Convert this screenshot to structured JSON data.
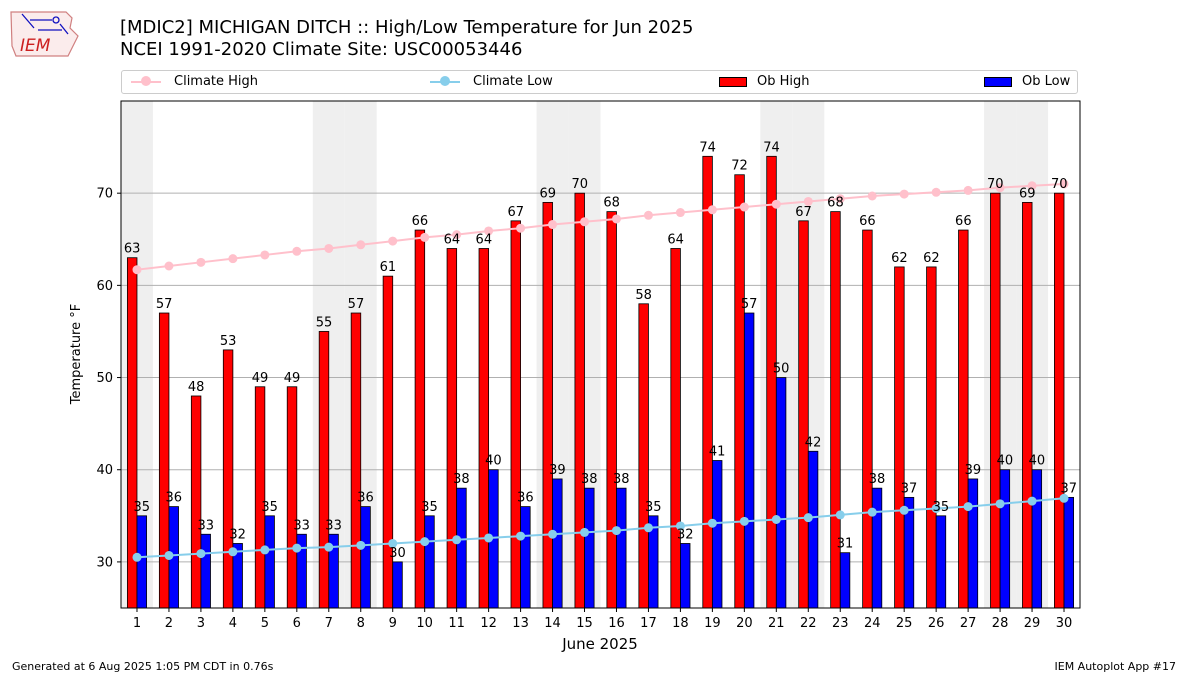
{
  "logo_text": "IEM",
  "title_line1": "[MDIC2] MICHIGAN DITCH :: High/Low Temperature for Jun 2025",
  "title_line2": "NCEI 1991-2020 Climate Site: USC00053446",
  "footer_left": "Generated at 6 Aug 2025 1:05 PM CDT in 0.76s",
  "footer_right": "IEM Autoplot App #17",
  "legend": [
    {
      "label": "Climate High",
      "color": "#ffc0cb",
      "kind": "line"
    },
    {
      "label": "Climate Low",
      "color": "#87ceeb",
      "kind": "line"
    },
    {
      "label": "Ob High",
      "color": "#ff0000",
      "kind": "box"
    },
    {
      "label": "Ob Low",
      "color": "#0000ff",
      "kind": "box"
    }
  ],
  "chart_data": {
    "type": "bar",
    "xlabel": "June 2025",
    "ylabel": "Temperature °F",
    "ylim": [
      25,
      80
    ],
    "xlim": [
      0.5,
      30.5
    ],
    "yticks": [
      30,
      40,
      50,
      60,
      70
    ],
    "grid": "horizontal",
    "legend_position": "top",
    "categories": [
      1,
      2,
      3,
      4,
      5,
      6,
      7,
      8,
      9,
      10,
      11,
      12,
      13,
      14,
      15,
      16,
      17,
      18,
      19,
      20,
      21,
      22,
      23,
      24,
      25,
      26,
      27,
      28,
      29,
      30
    ],
    "weekend_shading_days": [
      1,
      7,
      8,
      14,
      15,
      21,
      22,
      28,
      29
    ],
    "series": [
      {
        "name": "Ob High",
        "color": "#ff0000",
        "values": [
          63,
          57,
          48,
          53,
          49,
          49,
          55,
          57,
          61,
          66,
          64,
          64,
          67,
          69,
          70,
          68,
          58,
          64,
          74,
          72,
          74,
          67,
          68,
          66,
          62,
          62,
          66,
          70,
          69,
          70
        ]
      },
      {
        "name": "Ob Low",
        "color": "#0000ff",
        "values": [
          35,
          36,
          33,
          32,
          35,
          33,
          33,
          36,
          30,
          35,
          38,
          40,
          36,
          39,
          38,
          38,
          35,
          32,
          41,
          57,
          50,
          42,
          31,
          38,
          37,
          35,
          39,
          40,
          40,
          37
        ]
      },
      {
        "name": "Climate High",
        "color": "#ffc0cb",
        "values": [
          61.7,
          62.1,
          62.5,
          62.9,
          63.3,
          63.7,
          64.0,
          64.4,
          64.8,
          65.2,
          65.5,
          65.9,
          66.2,
          66.6,
          66.9,
          67.2,
          67.6,
          67.9,
          68.2,
          68.5,
          68.8,
          69.1,
          69.4,
          69.7,
          69.9,
          70.1,
          70.3,
          70.6,
          70.8,
          71.0
        ]
      },
      {
        "name": "Climate Low",
        "color": "#87ceeb",
        "values": [
          30.5,
          30.7,
          30.9,
          31.1,
          31.3,
          31.5,
          31.6,
          31.8,
          32.0,
          32.2,
          32.4,
          32.6,
          32.8,
          33.0,
          33.2,
          33.4,
          33.7,
          33.9,
          34.2,
          34.4,
          34.6,
          34.8,
          35.1,
          35.4,
          35.6,
          35.8,
          36.0,
          36.3,
          36.6,
          36.9
        ]
      }
    ]
  }
}
